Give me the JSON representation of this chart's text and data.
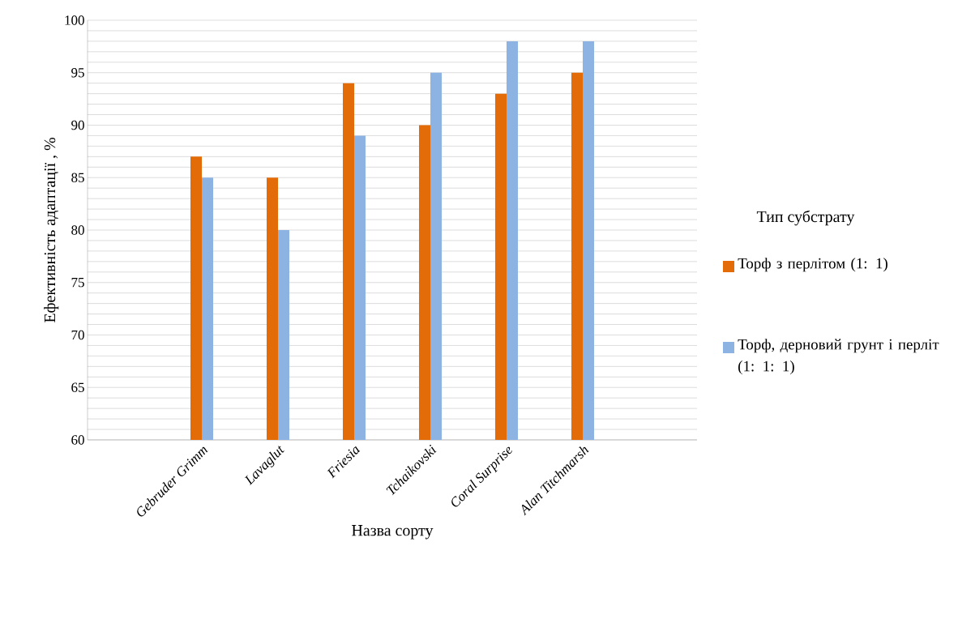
{
  "chart_data": {
    "type": "bar",
    "xlabel": "Назва сорту",
    "ylabel": "Ефективність  адаптації , %",
    "legend_title": "Тип субстрату",
    "categories": [
      null,
      "Gebruder Grimm",
      "Lavaglut",
      "Friesia",
      "Tchaikovski",
      "Coral Surprise",
      "Alan Titchmarsh",
      null
    ],
    "series": [
      {
        "name": "Торф з перлітом (1: 1)",
        "color": "#e36c09",
        "values": [
          null,
          87,
          85,
          94,
          90,
          93,
          95,
          null
        ]
      },
      {
        "name": "Торф, дерновий грунт і перліт (1: 1: 1)",
        "color": "#8db3e2",
        "values": [
          null,
          85,
          80,
          89,
          95,
          98,
          98,
          null
        ]
      }
    ],
    "ylim": [
      60,
      100
    ],
    "yticks": [
      60,
      {
        "value": 61,
        "label": null
      },
      {
        "value": 62,
        "label": null
      },
      {
        "value": 63,
        "label": null
      },
      {
        "value": 64,
        "label": null
      },
      65,
      {
        "value": 66,
        "label": null
      },
      {
        "value": 67,
        "label": null
      },
      {
        "value": 68,
        "label": null
      },
      {
        "value": 69,
        "label": null
      },
      70,
      {
        "value": 71,
        "label": null
      },
      {
        "value": 72,
        "label": null
      },
      {
        "value": 73,
        "label": null
      },
      {
        "value": 74,
        "label": null
      },
      75,
      {
        "value": 76,
        "label": null
      },
      {
        "value": 77,
        "label": null
      },
      {
        "value": 78,
        "label": null
      },
      {
        "value": 79,
        "label": null
      },
      80,
      {
        "value": 81,
        "label": null
      },
      {
        "value": 82,
        "label": null
      },
      {
        "value": 83,
        "label": null
      },
      {
        "value": 84,
        "label": null
      },
      85,
      {
        "value": 86,
        "label": null
      },
      {
        "value": 87,
        "label": null
      },
      {
        "value": 88,
        "label": null
      },
      {
        "value": 89,
        "label": null
      },
      90,
      {
        "value": 91,
        "label": null
      },
      {
        "value": 92,
        "label": null
      },
      {
        "value": 93,
        "label": null
      },
      {
        "value": 94,
        "label": null
      },
      95,
      {
        "value": 96,
        "label": null
      },
      {
        "value": 97,
        "label": null
      },
      {
        "value": 98,
        "label": null
      },
      {
        "value": 99,
        "label": null
      },
      100
    ],
    "grid": "y",
    "legend": "right"
  }
}
